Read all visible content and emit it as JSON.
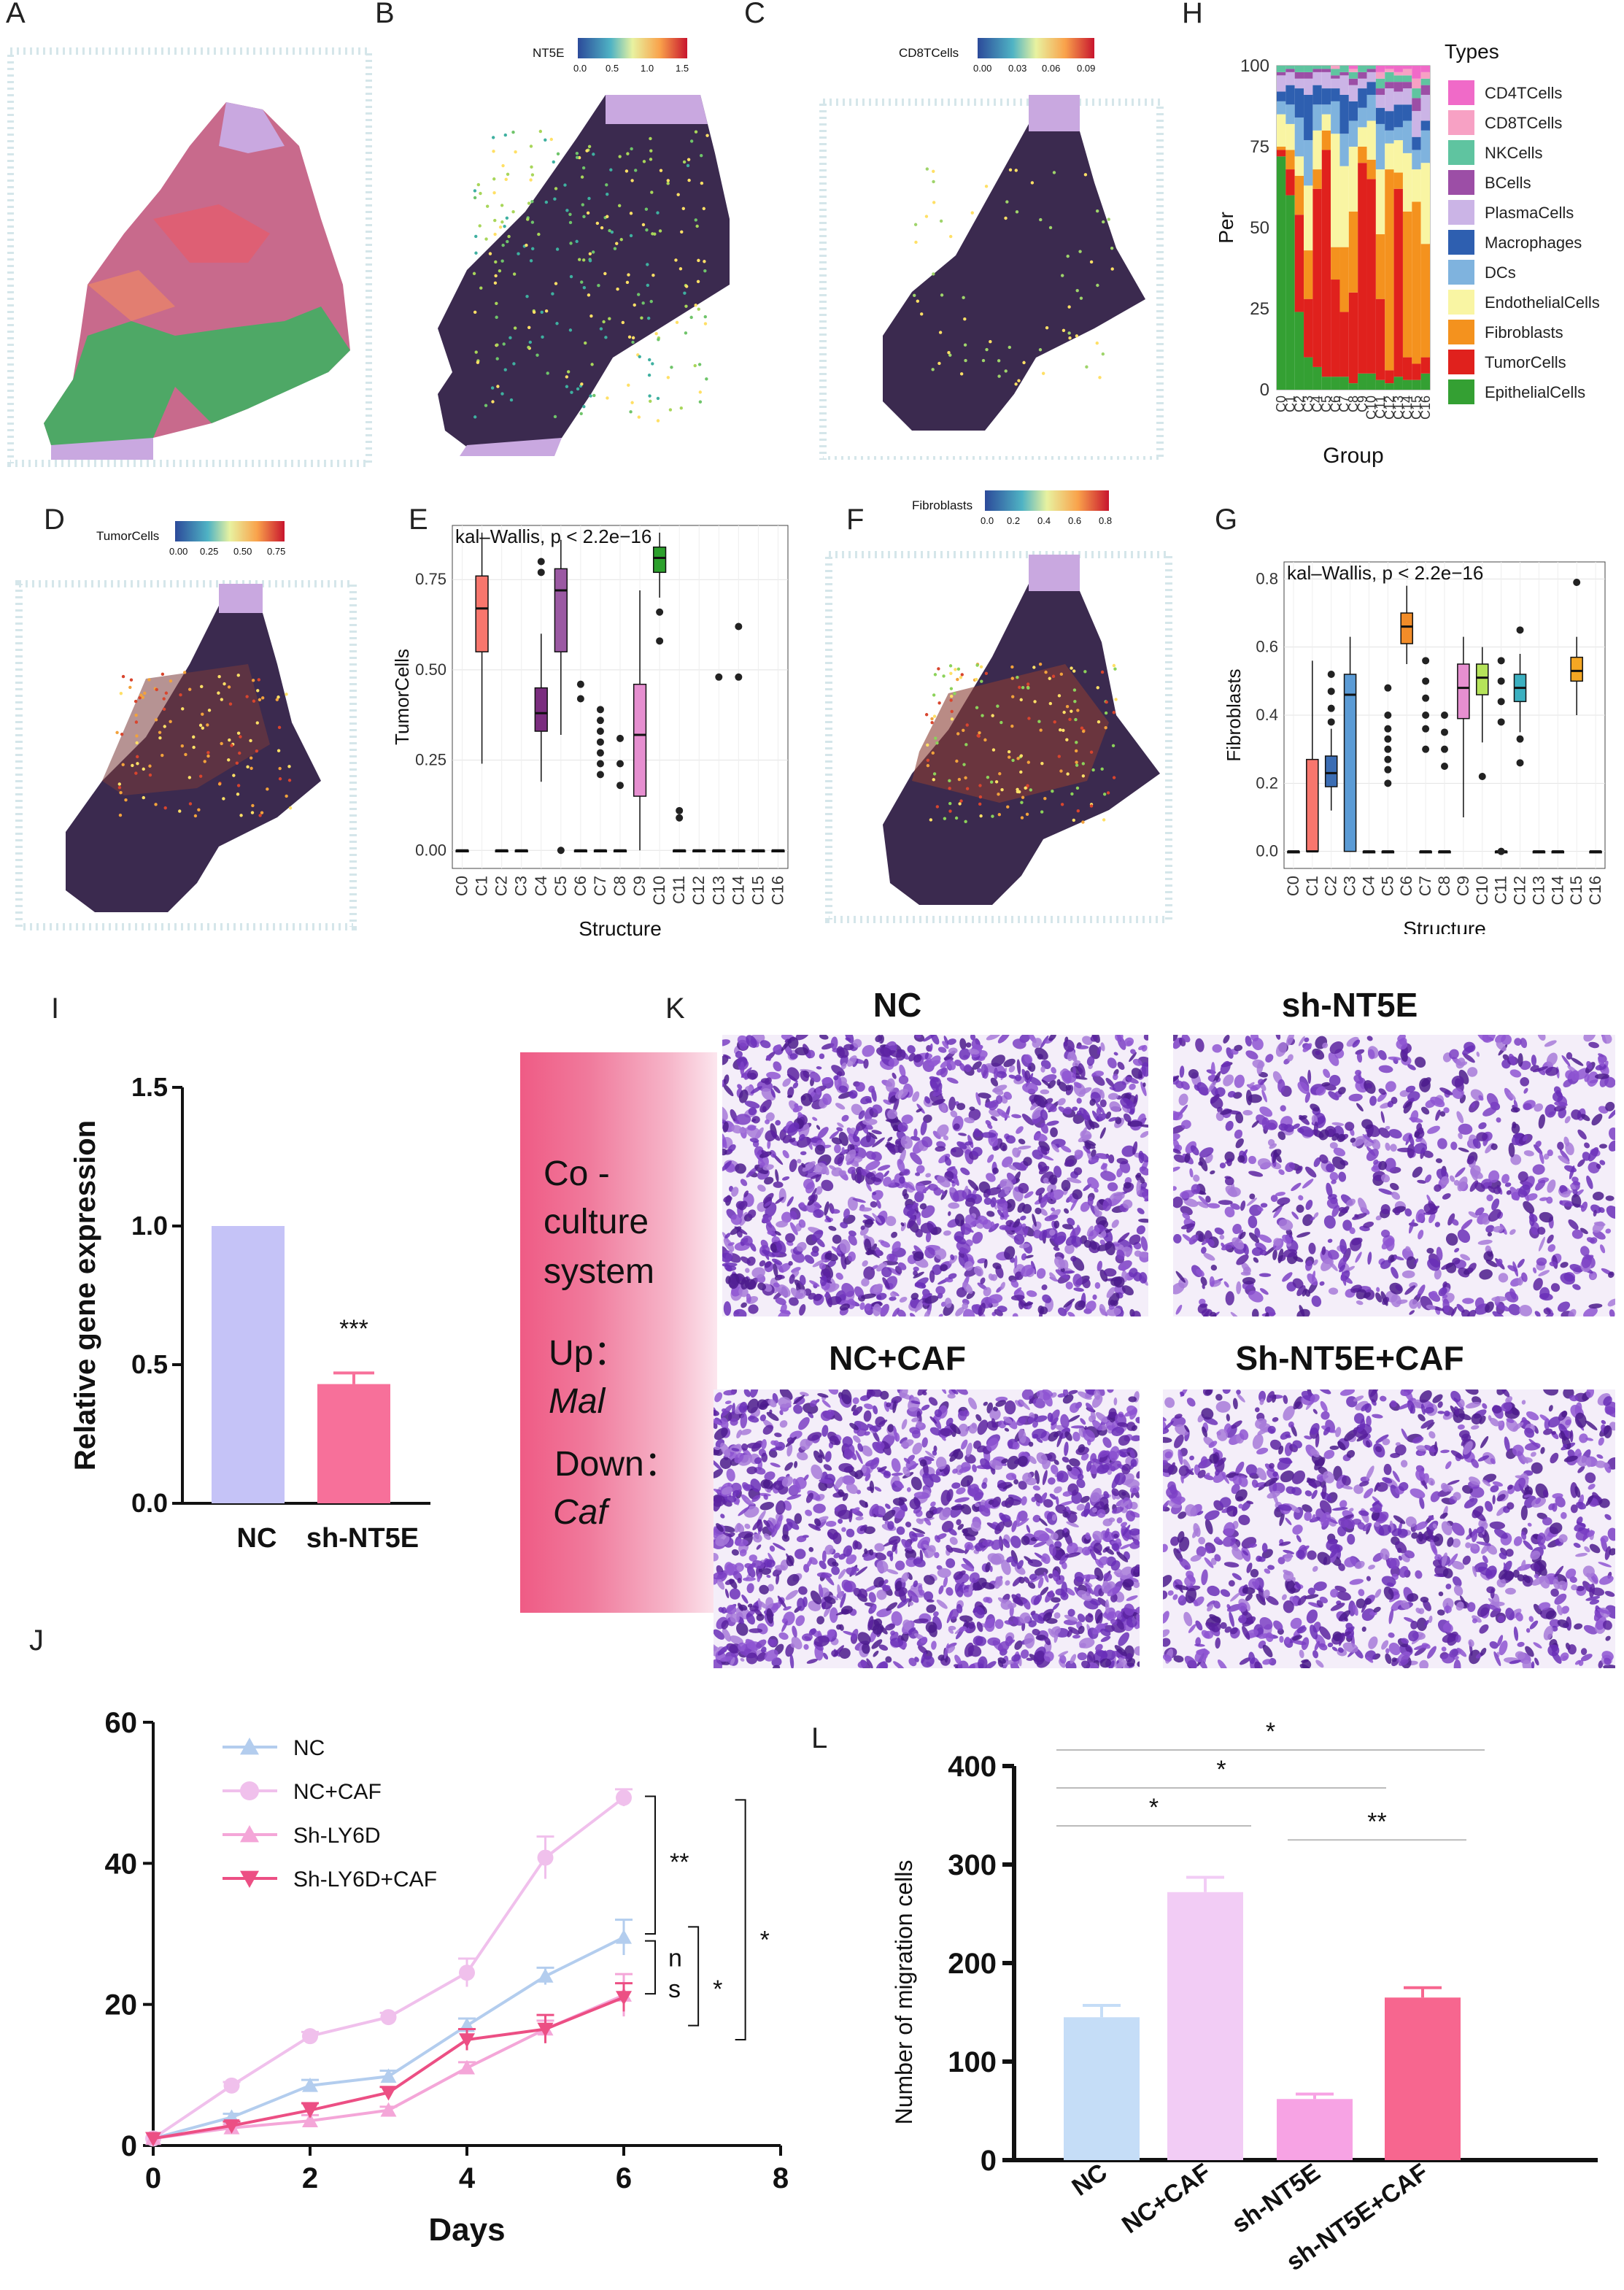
{
  "panel_labels": {
    "A": "A",
    "B": "B",
    "C": "C",
    "D": "D",
    "E": "E",
    "F": "F",
    "G": "G",
    "H": "H",
    "I": "I",
    "J": "J",
    "K": "K",
    "L": "L"
  },
  "colorbars": {
    "nt5e": {
      "title": "NT5E",
      "ticks": [
        "0.0",
        "0.5",
        "1.0",
        "1.5"
      ]
    },
    "cd8": {
      "title": "CD8TCells",
      "ticks": [
        "0.00",
        "0.03",
        "0.06",
        "0.09"
      ]
    },
    "tumor": {
      "title": "TumorCells",
      "ticks": [
        "0.00",
        "0.25",
        "0.50",
        "0.75"
      ]
    },
    "fibro": {
      "title": "Fibroblasts",
      "ticks": [
        "0.0",
        "0.2",
        "0.4",
        "0.6",
        "0.8"
      ]
    }
  },
  "colors": {
    "viridis_dark": "#3b2a4f",
    "spot_hi": "#ffe066",
    "cluster_red": "#d7263d",
    "cluster_green": "#3fa05a",
    "bar_nc": "#c5c3f7",
    "bar_sh": "#f7709a",
    "cc_grad": "#ef5b85",
    "stain": "#7b3fc4"
  },
  "chart_data": [
    {
      "id": "E",
      "type": "box",
      "title": "kal–Wallis, p < 2.2e−16",
      "xlabel": "Structure",
      "ylabel": "TumorCells",
      "categories": [
        "C0",
        "C1",
        "C2",
        "C3",
        "C4",
        "C5",
        "C6",
        "C7",
        "C8",
        "C9",
        "C10",
        "C11",
        "C12",
        "C13",
        "C14",
        "C15",
        "C16"
      ],
      "yticks": [
        "0.00",
        "0.25",
        "0.50",
        "0.75"
      ],
      "ylim": [
        -0.05,
        0.9
      ],
      "boxes": [
        {
          "q1": 0,
          "med": 0,
          "q3": 0,
          "lo": 0,
          "hi": 0,
          "color": "#888"
        },
        {
          "q1": 0.55,
          "med": 0.67,
          "q3": 0.76,
          "lo": 0.24,
          "hi": 0.88,
          "color": "#f8766d"
        },
        {
          "q1": 0,
          "med": 0,
          "q3": 0,
          "lo": 0,
          "hi": 0,
          "color": "#888"
        },
        {
          "q1": 0,
          "med": 0,
          "q3": 0,
          "lo": 0,
          "hi": 0,
          "color": "#888"
        },
        {
          "q1": 0.33,
          "med": 0.38,
          "q3": 0.45,
          "lo": 0.19,
          "hi": 0.6,
          "color": "#7b2d7f"
        },
        {
          "q1": 0.55,
          "med": 0.72,
          "q3": 0.78,
          "lo": 0.32,
          "hi": 0.86,
          "color": "#9b59a3"
        },
        {
          "q1": 0,
          "med": 0,
          "q3": 0,
          "lo": 0,
          "hi": 0,
          "color": "#888"
        },
        {
          "q1": 0,
          "med": 0,
          "q3": 0,
          "lo": 0,
          "hi": 0,
          "color": "#888"
        },
        {
          "q1": 0,
          "med": 0,
          "q3": 0,
          "lo": 0,
          "hi": 0,
          "color": "#888"
        },
        {
          "q1": 0.15,
          "med": 0.32,
          "q3": 0.46,
          "lo": 0,
          "hi": 0.72,
          "color": "#e68fd0"
        },
        {
          "q1": 0.77,
          "med": 0.81,
          "q3": 0.84,
          "lo": 0.7,
          "hi": 0.88,
          "color": "#2ca02c"
        },
        {
          "q1": 0,
          "med": 0,
          "q3": 0,
          "lo": 0,
          "hi": 0,
          "color": "#888"
        },
        {
          "q1": 0,
          "med": 0,
          "q3": 0,
          "lo": 0,
          "hi": 0,
          "color": "#888"
        },
        {
          "q1": 0,
          "med": 0,
          "q3": 0,
          "lo": 0,
          "hi": 0,
          "color": "#888"
        },
        {
          "q1": 0,
          "med": 0,
          "q3": 0,
          "lo": 0,
          "hi": 0,
          "color": "#888"
        },
        {
          "q1": 0,
          "med": 0,
          "q3": 0,
          "lo": 0,
          "hi": 0,
          "color": "#888"
        },
        {
          "q1": 0,
          "med": 0,
          "q3": 0,
          "lo": 0,
          "hi": 0,
          "color": "#888"
        }
      ],
      "outliers": [
        [
          4,
          0.8
        ],
        [
          4,
          0.77
        ],
        [
          5,
          0
        ],
        [
          6,
          0.46
        ],
        [
          6,
          0.42
        ],
        [
          7,
          0.39
        ],
        [
          7,
          0.36
        ],
        [
          7,
          0.33
        ],
        [
          7,
          0.3
        ],
        [
          7,
          0.27
        ],
        [
          7,
          0.24
        ],
        [
          7,
          0.21
        ],
        [
          8,
          0.31
        ],
        [
          8,
          0.24
        ],
        [
          8,
          0.18
        ],
        [
          10,
          0.66
        ],
        [
          10,
          0.58
        ],
        [
          11,
          0.11
        ],
        [
          11,
          0.09
        ],
        [
          13,
          0.48
        ],
        [
          14,
          0.62
        ],
        [
          14,
          0.48
        ]
      ]
    },
    {
      "id": "G",
      "type": "box",
      "title": "kal–Wallis, p < 2.2e−16",
      "xlabel": "Structure",
      "ylabel": "Fibroblasts",
      "categories": [
        "C0",
        "C1",
        "C2",
        "C3",
        "C4",
        "C5",
        "C6",
        "C7",
        "C8",
        "C9",
        "C10",
        "C11",
        "C12",
        "C13",
        "C14",
        "C15",
        "C16"
      ],
      "yticks": [
        "0.0",
        "0.2",
        "0.4",
        "0.6",
        "0.8"
      ],
      "ylim": [
        -0.05,
        0.85
      ],
      "boxes": [
        {
          "q1": 0,
          "med": 0,
          "q3": 0,
          "lo": 0,
          "hi": 0,
          "color": "#888"
        },
        {
          "q1": 0,
          "med": 0,
          "q3": 0.27,
          "lo": 0,
          "hi": 0.56,
          "color": "#f8766d"
        },
        {
          "q1": 0.19,
          "med": 0.23,
          "q3": 0.28,
          "lo": 0.12,
          "hi": 0.36,
          "color": "#3b6db4"
        },
        {
          "q1": 0,
          "med": 0.46,
          "q3": 0.52,
          "lo": 0,
          "hi": 0.63,
          "color": "#5b9bd5"
        },
        {
          "q1": 0,
          "med": 0,
          "q3": 0,
          "lo": 0,
          "hi": 0,
          "color": "#888"
        },
        {
          "q1": 0,
          "med": 0,
          "q3": 0,
          "lo": 0,
          "hi": 0,
          "color": "#888"
        },
        {
          "q1": 0.61,
          "med": 0.66,
          "q3": 0.7,
          "lo": 0.55,
          "hi": 0.78,
          "color": "#f28c28"
        },
        {
          "q1": 0,
          "med": 0,
          "q3": 0,
          "lo": 0,
          "hi": 0,
          "color": "#888"
        },
        {
          "q1": 0,
          "med": 0,
          "q3": 0,
          "lo": 0,
          "hi": 0,
          "color": "#888"
        },
        {
          "q1": 0.39,
          "med": 0.48,
          "q3": 0.55,
          "lo": 0.1,
          "hi": 0.63,
          "color": "#e68fd0"
        },
        {
          "q1": 0.46,
          "med": 0.51,
          "q3": 0.55,
          "lo": 0.32,
          "hi": 0.6,
          "color": "#b5e35a"
        },
        {
          "q1": 0,
          "med": 0,
          "q3": 0,
          "lo": 0,
          "hi": 0,
          "color": "#888"
        },
        {
          "q1": 0.44,
          "med": 0.48,
          "q3": 0.52,
          "lo": 0.35,
          "hi": 0.58,
          "color": "#3cb0c0"
        },
        {
          "q1": 0,
          "med": 0,
          "q3": 0,
          "lo": 0,
          "hi": 0,
          "color": "#888"
        },
        {
          "q1": 0,
          "med": 0,
          "q3": 0,
          "lo": 0,
          "hi": 0,
          "color": "#888"
        },
        {
          "q1": 0.5,
          "med": 0.53,
          "q3": 0.57,
          "lo": 0.4,
          "hi": 0.63,
          "color": "#f5a623"
        },
        {
          "q1": 0,
          "med": 0,
          "q3": 0,
          "lo": 0,
          "hi": 0,
          "color": "#888"
        }
      ],
      "outliers": [
        [
          2,
          0.47
        ],
        [
          2,
          0.42
        ],
        [
          2,
          0.38
        ],
        [
          2,
          0.52
        ],
        [
          5,
          0.48
        ],
        [
          5,
          0.4
        ],
        [
          5,
          0.36
        ],
        [
          5,
          0.33
        ],
        [
          5,
          0.3
        ],
        [
          5,
          0.27
        ],
        [
          5,
          0.24
        ],
        [
          5,
          0.2
        ],
        [
          7,
          0.56
        ],
        [
          7,
          0.5
        ],
        [
          7,
          0.45
        ],
        [
          7,
          0.4
        ],
        [
          7,
          0.36
        ],
        [
          7,
          0.3
        ],
        [
          8,
          0.4
        ],
        [
          8,
          0.35
        ],
        [
          8,
          0.3
        ],
        [
          8,
          0.25
        ],
        [
          10,
          0.22
        ],
        [
          11,
          0.56
        ],
        [
          11,
          0.5
        ],
        [
          11,
          0.44
        ],
        [
          11,
          0.38
        ],
        [
          11,
          0
        ],
        [
          12,
          0.65
        ],
        [
          12,
          0.26
        ],
        [
          12,
          0.33
        ],
        [
          15,
          0.79
        ]
      ]
    },
    {
      "id": "H",
      "type": "stacked-bar",
      "xlabel": "Group",
      "ylabel": "Per",
      "yticks": [
        "0",
        "25",
        "50",
        "75",
        "100"
      ],
      "ylim": [
        0,
        100
      ],
      "legend_title": "Types",
      "categories": [
        "C0",
        "C1",
        "C2",
        "C3",
        "C4",
        "C5",
        "C6",
        "C7",
        "C8",
        "C9",
        "C10",
        "C11",
        "C12",
        "C13",
        "C14",
        "C15",
        "C16"
      ],
      "series": [
        {
          "name": "CD4TCells",
          "color": "#f06ac8"
        },
        {
          "name": "CD8TCells",
          "color": "#f7a1c4"
        },
        {
          "name": "NKCells",
          "color": "#5fc4a0"
        },
        {
          "name": "BCells",
          "color": "#9c4ea6"
        },
        {
          "name": "PlasmaCells",
          "color": "#cbb4e6"
        },
        {
          "name": "Macrophages",
          "color": "#2e5fb0"
        },
        {
          "name": "DCs",
          "color": "#7fb3de"
        },
        {
          "name": "EndothelialCells",
          "color": "#f9f5a3"
        },
        {
          "name": "Fibroblasts",
          "color": "#f4921e"
        },
        {
          "name": "TumorCells",
          "color": "#e0211d"
        },
        {
          "name": "EpithelialCells",
          "color": "#34a033"
        }
      ],
      "stacks": [
        [
          0,
          0,
          2,
          1,
          5,
          3,
          4,
          10,
          1,
          2,
          72
        ],
        [
          0,
          0,
          1,
          1,
          4,
          6,
          6,
          8,
          6,
          8,
          60
        ],
        [
          0,
          0,
          2,
          2,
          3,
          9,
          12,
          6,
          12,
          30,
          24
        ],
        [
          0,
          0,
          2,
          2,
          5,
          14,
          14,
          20,
          15,
          18,
          10
        ],
        [
          0,
          0,
          1,
          1,
          4,
          6,
          8,
          12,
          6,
          55,
          7
        ],
        [
          0,
          0,
          1,
          1,
          5,
          5,
          3,
          5,
          6,
          70,
          4
        ],
        [
          0,
          1,
          2,
          1,
          3,
          4,
          10,
          35,
          10,
          30,
          4
        ],
        [
          0,
          0,
          2,
          1,
          6,
          12,
          10,
          25,
          20,
          20,
          4
        ],
        [
          1,
          1,
          2,
          2,
          5,
          6,
          8,
          20,
          25,
          28,
          2
        ],
        [
          0,
          0,
          2,
          2,
          3,
          6,
          6,
          6,
          5,
          65,
          5
        ],
        [
          0,
          0,
          1,
          1,
          3,
          4,
          8,
          12,
          6,
          60,
          5
        ],
        [
          2,
          2,
          3,
          2,
          4,
          5,
          14,
          20,
          20,
          25,
          3
        ],
        [
          1,
          1,
          3,
          2,
          7,
          6,
          4,
          8,
          62,
          4,
          2
        ],
        [
          2,
          1,
          2,
          3,
          4,
          7,
          4,
          10,
          5,
          58,
          4
        ],
        [
          1,
          2,
          2,
          2,
          5,
          5,
          10,
          18,
          45,
          7,
          3
        ],
        [
          4,
          3,
          3,
          4,
          8,
          4,
          6,
          10,
          50,
          5,
          3
        ],
        [
          2,
          2,
          2,
          3,
          8,
          3,
          10,
          25,
          35,
          5,
          5
        ]
      ]
    },
    {
      "id": "I",
      "type": "bar",
      "ylabel": "Relative gene expression",
      "categories": [
        "NC",
        "sh-NT5E"
      ],
      "values": [
        1.0,
        0.43
      ],
      "errors": [
        0,
        0.04
      ],
      "yticks": [
        "0.0",
        "0.5",
        "1.0",
        "1.5"
      ],
      "ylim": [
        0,
        1.5
      ],
      "sig": "***"
    },
    {
      "id": "J",
      "type": "line",
      "xlabel": "Days",
      "xticks": [
        "0",
        "2",
        "4",
        "6",
        "8"
      ],
      "yticks": [
        "0",
        "20",
        "40",
        "60"
      ],
      "xlim": [
        0,
        8
      ],
      "ylim": [
        0,
        60
      ],
      "x": [
        0,
        1,
        2,
        3,
        4,
        5,
        6
      ],
      "series": [
        {
          "name": "NC",
          "values": [
            1,
            4,
            8.5,
            9.8,
            17,
            24,
            29.5
          ],
          "errors": [
            0,
            0.5,
            0.8,
            0.8,
            1,
            1.2,
            2.5
          ],
          "color": "#b3cdee",
          "marker": "triangle-up"
        },
        {
          "name": "NC+CAF",
          "values": [
            1,
            8.5,
            15.5,
            18.2,
            24.5,
            40.8,
            49.3
          ],
          "errors": [
            0,
            0.5,
            0.6,
            0.6,
            2,
            3,
            1.2
          ],
          "color": "#f0c0ec",
          "marker": "circle"
        },
        {
          "name": "Sh-LY6D",
          "values": [
            1,
            2.5,
            3.5,
            5,
            11,
            16.5,
            21.3
          ],
          "errors": [
            0,
            0.5,
            0.8,
            0.5,
            0.8,
            1.2,
            3
          ],
          "color": "#f4a6d8",
          "marker": "triangle-up"
        },
        {
          "name": "Sh-LY6D+CAF",
          "values": [
            1,
            2.8,
            5,
            7.5,
            15,
            16.5,
            21
          ],
          "errors": [
            0,
            0.6,
            1,
            0.8,
            1.5,
            2,
            2
          ],
          "color": "#ec4f84",
          "marker": "triangle-down"
        }
      ],
      "annotations": [
        "**",
        "n",
        "s",
        "*",
        "*"
      ]
    },
    {
      "id": "L",
      "type": "bar",
      "ylabel": "Number of migration cells",
      "categories": [
        "NC",
        "NC+CAF",
        "sh-NT5E",
        "sh-NT5E+CAF"
      ],
      "values": [
        145,
        272,
        62,
        165
      ],
      "errors": [
        12,
        15,
        5,
        10
      ],
      "colors": [
        "#c5ddf7",
        "#f2ccf5",
        "#f7a3e4",
        "#f7668f"
      ],
      "yticks": [
        "0",
        "100",
        "200",
        "300",
        "400"
      ],
      "ylim": [
        0,
        400
      ],
      "sig": [
        "*",
        "*",
        "*",
        "**"
      ]
    }
  ],
  "panel_K": {
    "titles": [
      "NC",
      "sh-NT5E",
      "NC+CAF",
      "Sh-NT5E+CAF"
    ],
    "coculture": {
      "line1": "Co -",
      "line2": "culture",
      "line3": "system",
      "up_label": "Up：",
      "up_value": "Mal",
      "down_label": "Down：",
      "down_value": "Caf"
    }
  }
}
